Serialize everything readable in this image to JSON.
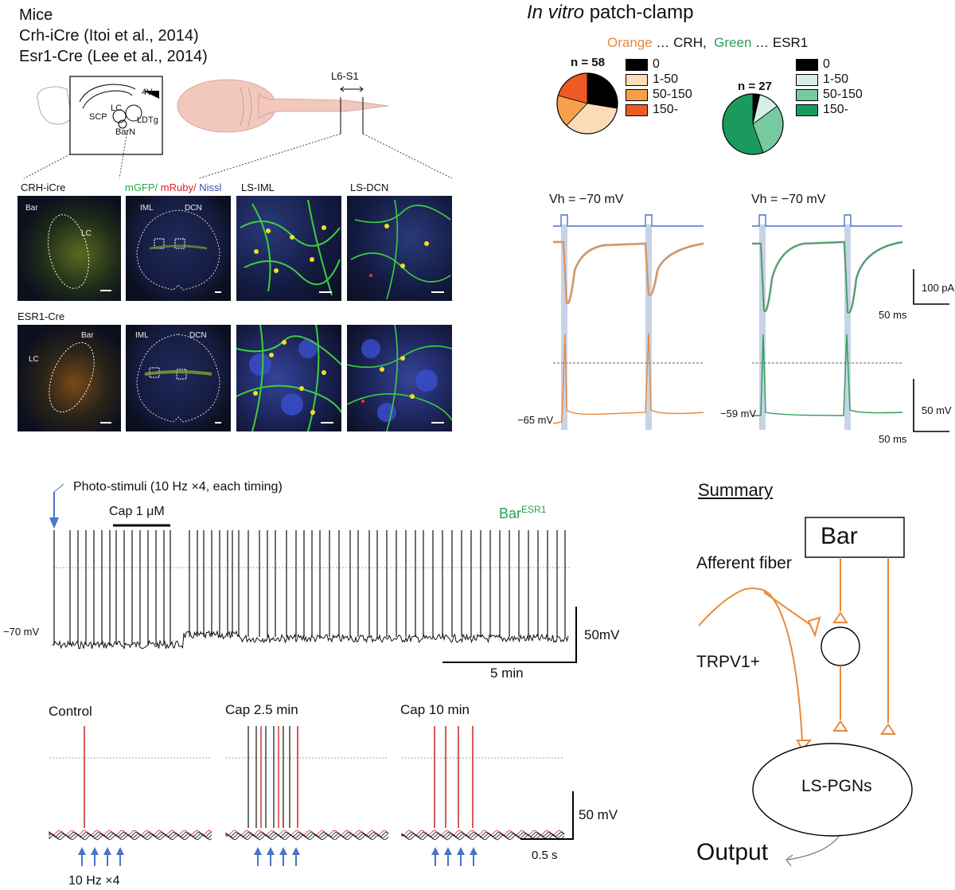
{
  "top_left": {
    "lines": [
      "Mice",
      "Crh-iCre (Itoi et al., 2014)",
      "Esr1-Cre (Lee et al., 2014)"
    ],
    "schematic_labels": [
      "4V",
      "SCP",
      "LC",
      "LDTg",
      "BarN"
    ],
    "segment_label": "L6-S1"
  },
  "micrographs": {
    "row1_label": "CRH-iCre",
    "row2_label": "ESR1-Cre",
    "stain_legend": {
      "mgfp": "mGFP/",
      "mruby": "mRuby/",
      "nissl": "Nissl"
    },
    "col_labels": [
      "LS-IML",
      "LS-DCN"
    ],
    "inner_labels": {
      "bar": "Bar",
      "lc": "LC",
      "iml": "IML",
      "dcn": "DCN"
    }
  },
  "patch": {
    "title_italic": "In vitro",
    "title_rest": " patch-clamp",
    "legend_line": {
      "orange": "Orange",
      "orange_rest": " … CRH,",
      "green": "Green",
      "green_rest": " … ESR1"
    },
    "crh_pie": {
      "n_label": "n = 58",
      "categories": [
        "0",
        "1-50",
        "50-150",
        "150-"
      ],
      "values": [
        16,
        20,
        10,
        12
      ],
      "colors": [
        "#000000",
        "#fcdcb8",
        "#f7a04c",
        "#ee5a24"
      ]
    },
    "esr1_pie": {
      "n_label": "n = 27",
      "categories": [
        "0",
        "1-50",
        "50-150",
        "150-"
      ],
      "values": [
        1,
        3,
        8,
        15
      ],
      "colors": [
        "#000000",
        "#d6efe4",
        "#77c9a0",
        "#1a9a5c"
      ]
    },
    "vh_left": "Vh = −70 mV",
    "vh_right": "Vh = −70 mV",
    "scale_pa": "100 pA",
    "scale_ms_1": "50 ms",
    "scale_mv": "50 mV",
    "scale_ms_2": "50 ms",
    "vm_left": "−65 mV",
    "vm_right": "−59 mV"
  },
  "long_trace": {
    "photo_label": "Photo-stimuli (10 Hz ×4, each timing)",
    "cap_label": "Cap 1 μM",
    "bar_label": "Bar",
    "bar_sup": "ESR1",
    "vm_label": "−70 mV",
    "scale_mv": "50mV",
    "scale_min": "5 min"
  },
  "bottom_traces": {
    "labels": [
      "Control",
      "Cap 2.5 min",
      "Cap 10 min"
    ],
    "scale_mv": "50 mV",
    "scale_s": "0.5 s",
    "stim_label": "10 Hz ×4"
  },
  "summary": {
    "title": "Summary",
    "bar": "Bar",
    "afferent": "Afferent fiber",
    "trpv1": "TRPV1+",
    "lspgn": "LS-PGNs",
    "output": "Output"
  },
  "colors": {
    "orange": "#e8893a",
    "green": "#2a9d55",
    "blue": "#4a74c4",
    "red": "#d62a2a"
  }
}
